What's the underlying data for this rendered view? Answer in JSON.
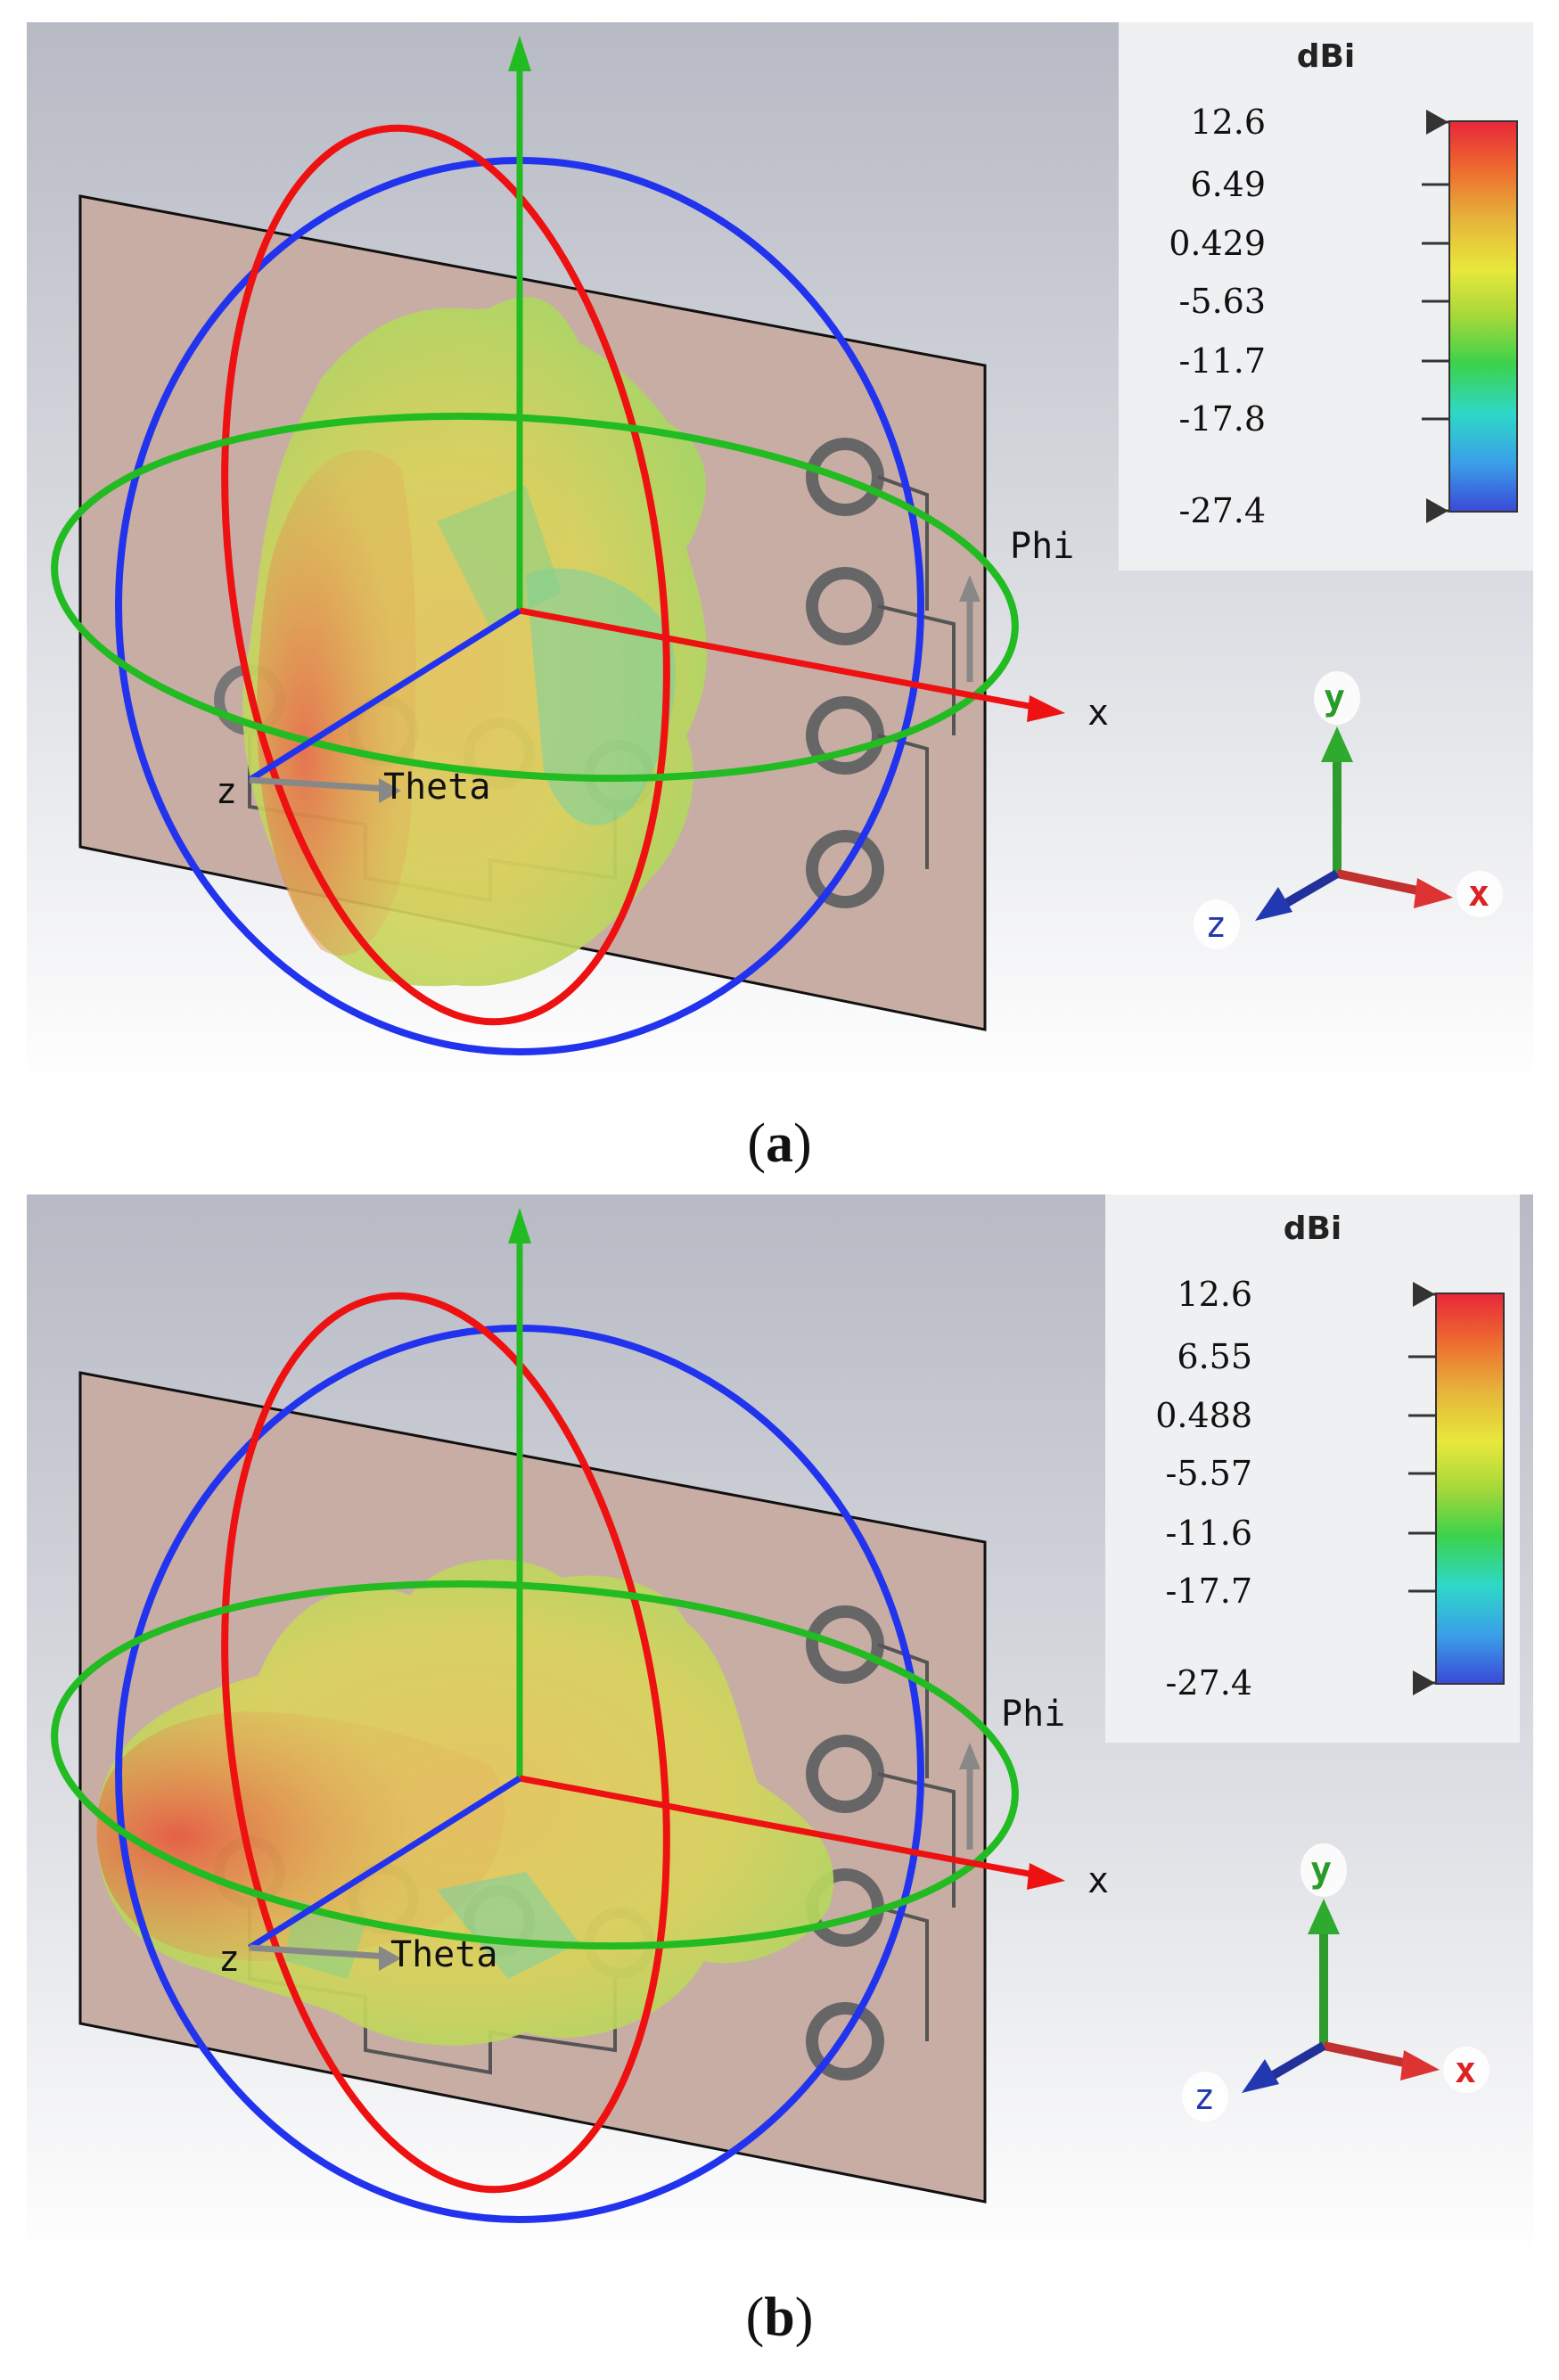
{
  "panels": [
    {
      "id": "a",
      "caption": "a",
      "legend": {
        "title": "dBi",
        "ticks": [
          "12.6",
          "6.49",
          "0.429",
          "-5.63",
          "-11.7",
          "-17.8",
          "-27.4"
        ]
      },
      "labels": {
        "phi": "Phi",
        "theta": "Theta",
        "x": "x",
        "z": "z"
      },
      "triad": {
        "x": "x",
        "y": "y",
        "z": "z"
      }
    },
    {
      "id": "b",
      "caption": "b",
      "legend": {
        "title": "dBi",
        "ticks": [
          "12.6",
          "6.55",
          "0.488",
          "-5.57",
          "-11.6",
          "-17.7",
          "-27.4"
        ]
      },
      "labels": {
        "phi": "Phi",
        "theta": "Theta",
        "x": "x",
        "z": "z"
      },
      "triad": {
        "x": "x",
        "y": "y",
        "z": "z"
      }
    }
  ],
  "colors": {
    "phi_circle": "#ee1111",
    "theta_circle": "#2233ee",
    "equator_circle": "#22bb22",
    "substrate": "#c8ada5",
    "background_top": "#b9bcc6",
    "background_bottom": "#ffffff"
  },
  "icons": [
    "y-axis-arrow-icon",
    "x-axis-arrow-icon",
    "z-axis-arrow-icon",
    "colorbar-max-marker-icon",
    "colorbar-min-marker-icon"
  ]
}
